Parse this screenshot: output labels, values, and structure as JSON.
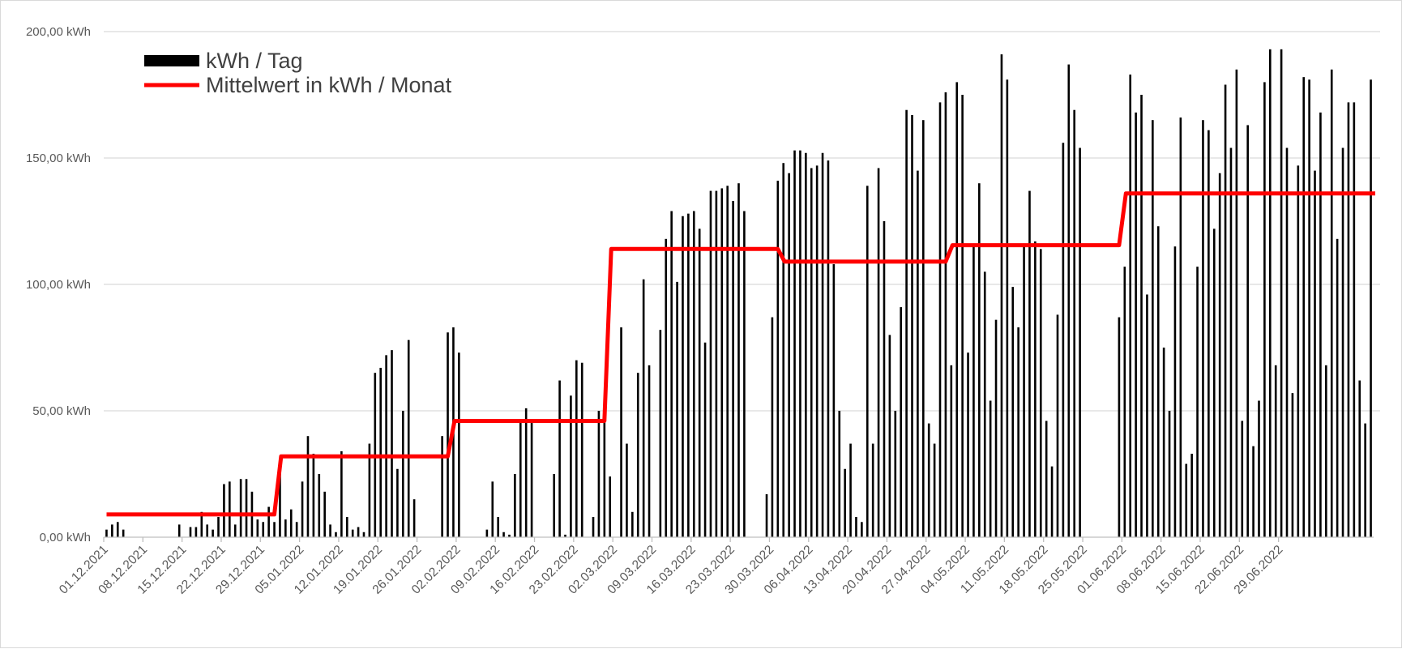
{
  "chart_data": {
    "type": "bar",
    "title": "",
    "xlabel": "",
    "ylabel": "",
    "ylim": [
      0,
      200
    ],
    "yticks": [
      0,
      50,
      100,
      150,
      200
    ],
    "ytick_labels": [
      "0,00 kWh",
      "50,00 kWh",
      "100,00 kWh",
      "150,00 kWh",
      "200,00 kWh"
    ],
    "xtick_labels": [
      "01.12.2021",
      "08.12.2021",
      "15.12.2021",
      "22.12.2021",
      "29.12.2021",
      "05.01.2022",
      "12.01.2022",
      "19.01.2022",
      "26.01.2022",
      "02.02.2022",
      "09.02.2022",
      "16.02.2022",
      "23.02.2022",
      "02.03.2022",
      "09.03.2022",
      "16.03.2022",
      "23.03.2022",
      "30.03.2022",
      "06.04.2022",
      "13.04.2022",
      "20.04.2022",
      "27.04.2022",
      "04.05.2022",
      "11.05.2022",
      "18.05.2022",
      "25.05.2022",
      "01.06.2022",
      "08.06.2022",
      "15.06.2022",
      "22.06.2022",
      "29.06.2022"
    ],
    "grid": true,
    "legend_position": "top-left",
    "series": [
      {
        "name": "kWh / Tag",
        "type": "bar",
        "color": "#000000",
        "values": [
          3,
          5,
          6,
          3,
          0,
          0,
          0,
          0,
          0,
          0,
          0,
          0,
          0,
          5,
          0,
          4,
          4,
          10,
          5,
          3,
          8,
          21,
          22,
          5,
          23,
          23,
          18,
          7,
          6,
          12,
          6,
          28,
          7,
          11,
          6,
          22,
          40,
          33,
          25,
          18,
          5,
          2,
          34,
          8,
          3,
          4,
          2,
          37,
          65,
          67,
          72,
          74,
          27,
          50,
          78,
          15,
          0,
          0,
          0,
          0,
          40,
          81,
          83,
          73,
          0,
          0,
          0,
          0,
          3,
          22,
          8,
          2,
          1,
          25,
          46,
          51,
          46,
          0,
          0,
          0,
          25,
          62,
          1,
          56,
          70,
          69,
          0,
          8,
          50,
          54,
          24,
          0,
          83,
          37,
          10,
          65,
          102,
          68,
          0,
          82,
          118,
          129,
          101,
          127,
          128,
          129,
          122,
          77,
          137,
          137,
          138,
          139,
          133,
          140,
          129,
          0,
          0,
          0,
          17,
          87,
          141,
          148,
          144,
          153,
          153,
          152,
          146,
          147,
          152,
          149,
          108,
          50,
          27,
          37,
          8,
          6,
          139,
          37,
          146,
          125,
          80,
          50,
          91,
          169,
          167,
          145,
          165,
          45,
          37,
          172,
          176,
          68,
          180,
          175,
          73,
          116,
          140,
          105,
          54,
          86,
          191,
          181,
          99,
          83,
          115,
          137,
          117,
          114,
          46,
          28,
          88,
          156,
          187,
          169,
          154,
          0,
          0,
          0,
          0,
          0,
          0,
          87,
          107,
          183,
          168,
          175,
          96,
          165,
          123,
          75,
          50,
          115,
          166,
          29,
          33,
          107,
          165,
          161,
          122,
          144,
          179,
          154,
          185,
          46,
          163,
          36,
          54,
          180,
          193,
          68,
          193,
          154,
          57,
          147,
          182,
          181,
          145,
          168,
          68,
          185,
          118,
          154,
          172,
          172,
          62,
          45,
          181
        ]
      },
      {
        "name": "Mittelwert in kWh / Monat",
        "type": "step-line",
        "color": "#ff0000",
        "months": [
          "12.2021",
          "01.2022",
          "02.2022",
          "03.2022",
          "04.2022",
          "05.2022",
          "06.2022"
        ],
        "values": [
          9.0,
          32.0,
          46.0,
          114.0,
          109.0,
          115.5,
          136.0
        ]
      }
    ]
  }
}
